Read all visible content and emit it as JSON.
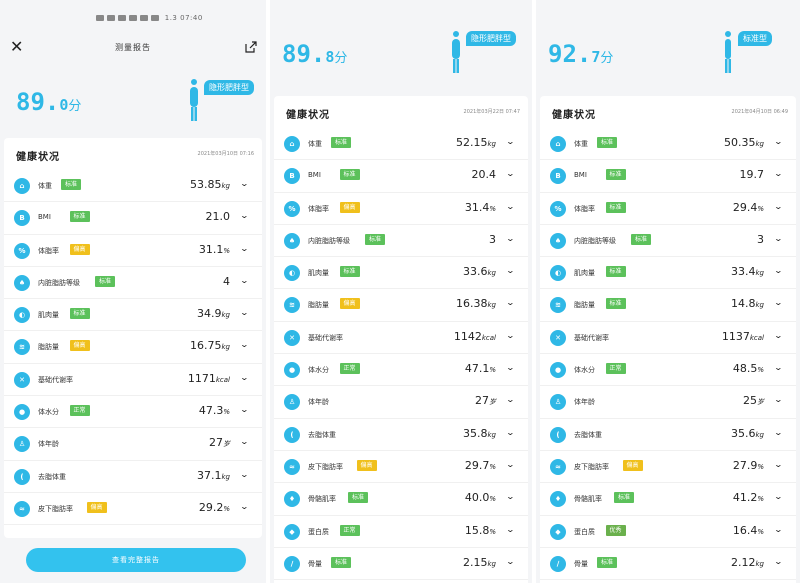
{
  "statusbar": {
    "time": "07:40",
    "speed": "1.3"
  },
  "colors": {
    "accent": "#2fb8e6",
    "standard": "#5cc15b",
    "high": "#f0c01c",
    "excellent": "#6ab04c"
  },
  "panels": [
    {
      "id": "p1",
      "title": "测量报告",
      "score_int": "89.",
      "score_dec": "0",
      "score_unit": "分",
      "body_type": "隐形肥胖型",
      "section_title": "健康状况",
      "date": "2021年03月10日 07:16",
      "bottom_button": "查看完整报告",
      "rows": [
        {
          "icon": "weight-icon",
          "label": "体重",
          "badge": "标准",
          "badge_color": "standard",
          "value": "53.85",
          "unit": "kg"
        },
        {
          "icon": "bmi-icon",
          "label": "BMI",
          "badge": "标准",
          "badge_color": "standard",
          "value": "21.0",
          "unit": ""
        },
        {
          "icon": "percent-icon",
          "label": "体脂率",
          "badge": "偏高",
          "badge_color": "high",
          "value": "31.1",
          "unit": "%"
        },
        {
          "icon": "visceral-fat-icon",
          "label": "内脏脂肪等级",
          "badge": "标准",
          "badge_color": "standard",
          "value": "4",
          "unit": ""
        },
        {
          "icon": "muscle-icon",
          "label": "肌肉量",
          "badge": "标准",
          "badge_color": "standard",
          "value": "34.9",
          "unit": "kg"
        },
        {
          "icon": "fat-mass-icon",
          "label": "脂肪量",
          "badge": "偏高",
          "badge_color": "high",
          "value": "16.75",
          "unit": "kg"
        },
        {
          "icon": "metabolism-icon",
          "label": "基础代谢率",
          "badge": "",
          "badge_color": "",
          "value": "1171",
          "unit": "kcal"
        },
        {
          "icon": "water-icon",
          "label": "体水分",
          "badge": "正常",
          "badge_color": "standard",
          "value": "47.3",
          "unit": "%"
        },
        {
          "icon": "body-age-icon",
          "label": "体年龄",
          "badge": "",
          "badge_color": "",
          "value": "27",
          "unit": "岁"
        },
        {
          "icon": "lean-weight-icon",
          "label": "去脂体重",
          "badge": "",
          "badge_color": "",
          "value": "37.1",
          "unit": "kg"
        },
        {
          "icon": "subcutaneous-fat-icon",
          "label": "皮下脂肪率",
          "badge": "偏高",
          "badge_color": "high",
          "value": "29.2",
          "unit": "%"
        }
      ]
    },
    {
      "id": "p2",
      "score_int": "89.",
      "score_dec": "8",
      "score_unit": "分",
      "body_type": "隐形肥胖型",
      "section_title": "健康状况",
      "date": "2021年03月22日 07:47",
      "rows": [
        {
          "icon": "weight-icon",
          "label": "体重",
          "badge": "标准",
          "badge_color": "standard",
          "value": "52.15",
          "unit": "kg"
        },
        {
          "icon": "bmi-icon",
          "label": "BMI",
          "badge": "标准",
          "badge_color": "standard",
          "value": "20.4",
          "unit": ""
        },
        {
          "icon": "percent-icon",
          "label": "体脂率",
          "badge": "偏高",
          "badge_color": "high",
          "value": "31.4",
          "unit": "%"
        },
        {
          "icon": "visceral-fat-icon",
          "label": "内脏脂肪等级",
          "badge": "标准",
          "badge_color": "standard",
          "value": "3",
          "unit": ""
        },
        {
          "icon": "muscle-icon",
          "label": "肌肉量",
          "badge": "标准",
          "badge_color": "standard",
          "value": "33.6",
          "unit": "kg"
        },
        {
          "icon": "fat-mass-icon",
          "label": "脂肪量",
          "badge": "偏高",
          "badge_color": "high",
          "value": "16.38",
          "unit": "kg"
        },
        {
          "icon": "metabolism-icon",
          "label": "基础代谢率",
          "badge": "",
          "badge_color": "",
          "value": "1142",
          "unit": "kcal"
        },
        {
          "icon": "water-icon",
          "label": "体水分",
          "badge": "正常",
          "badge_color": "standard",
          "value": "47.1",
          "unit": "%"
        },
        {
          "icon": "body-age-icon",
          "label": "体年龄",
          "badge": "",
          "badge_color": "",
          "value": "27",
          "unit": "岁"
        },
        {
          "icon": "lean-weight-icon",
          "label": "去脂体重",
          "badge": "",
          "badge_color": "",
          "value": "35.8",
          "unit": "kg"
        },
        {
          "icon": "subcutaneous-fat-icon",
          "label": "皮下脂肪率",
          "badge": "偏高",
          "badge_color": "high",
          "value": "29.7",
          "unit": "%"
        },
        {
          "icon": "skeletal-muscle-icon",
          "label": "骨骼肌率",
          "badge": "标准",
          "badge_color": "standard",
          "value": "40.0",
          "unit": "%"
        },
        {
          "icon": "protein-icon",
          "label": "蛋白质",
          "badge": "正常",
          "badge_color": "standard",
          "value": "15.8",
          "unit": "%"
        },
        {
          "icon": "bone-icon",
          "label": "骨量",
          "badge": "标准",
          "badge_color": "standard",
          "value": "2.15",
          "unit": "kg"
        }
      ]
    },
    {
      "id": "p3",
      "score_int": "92.",
      "score_dec": "7",
      "score_unit": "分",
      "body_type": "标准型",
      "section_title": "健康状况",
      "date": "2021年04月10日 06:49",
      "rows": [
        {
          "icon": "weight-icon",
          "label": "体重",
          "badge": "标准",
          "badge_color": "standard",
          "value": "50.35",
          "unit": "kg"
        },
        {
          "icon": "bmi-icon",
          "label": "BMI",
          "badge": "标准",
          "badge_color": "standard",
          "value": "19.7",
          "unit": ""
        },
        {
          "icon": "percent-icon",
          "label": "体脂率",
          "badge": "标准",
          "badge_color": "standard",
          "value": "29.4",
          "unit": "%"
        },
        {
          "icon": "visceral-fat-icon",
          "label": "内脏脂肪等级",
          "badge": "标准",
          "badge_color": "standard",
          "value": "3",
          "unit": ""
        },
        {
          "icon": "muscle-icon",
          "label": "肌肉量",
          "badge": "标准",
          "badge_color": "standard",
          "value": "33.4",
          "unit": "kg"
        },
        {
          "icon": "fat-mass-icon",
          "label": "脂肪量",
          "badge": "标准",
          "badge_color": "standard",
          "value": "14.8",
          "unit": "kg"
        },
        {
          "icon": "metabolism-icon",
          "label": "基础代谢率",
          "badge": "",
          "badge_color": "",
          "value": "1137",
          "unit": "kcal"
        },
        {
          "icon": "water-icon",
          "label": "体水分",
          "badge": "正常",
          "badge_color": "standard",
          "value": "48.5",
          "unit": "%"
        },
        {
          "icon": "body-age-icon",
          "label": "体年龄",
          "badge": "",
          "badge_color": "",
          "value": "25",
          "unit": "岁"
        },
        {
          "icon": "lean-weight-icon",
          "label": "去脂体重",
          "badge": "",
          "badge_color": "",
          "value": "35.6",
          "unit": "kg"
        },
        {
          "icon": "subcutaneous-fat-icon",
          "label": "皮下脂肪率",
          "badge": "偏高",
          "badge_color": "high",
          "value": "27.9",
          "unit": "%"
        },
        {
          "icon": "skeletal-muscle-icon",
          "label": "骨骼肌率",
          "badge": "标准",
          "badge_color": "standard",
          "value": "41.2",
          "unit": "%"
        },
        {
          "icon": "protein-icon",
          "label": "蛋白质",
          "badge": "优秀",
          "badge_color": "excellent",
          "value": "16.4",
          "unit": "%"
        },
        {
          "icon": "bone-icon",
          "label": "骨量",
          "badge": "标准",
          "badge_color": "standard",
          "value": "2.12",
          "unit": "kg"
        }
      ]
    }
  ]
}
